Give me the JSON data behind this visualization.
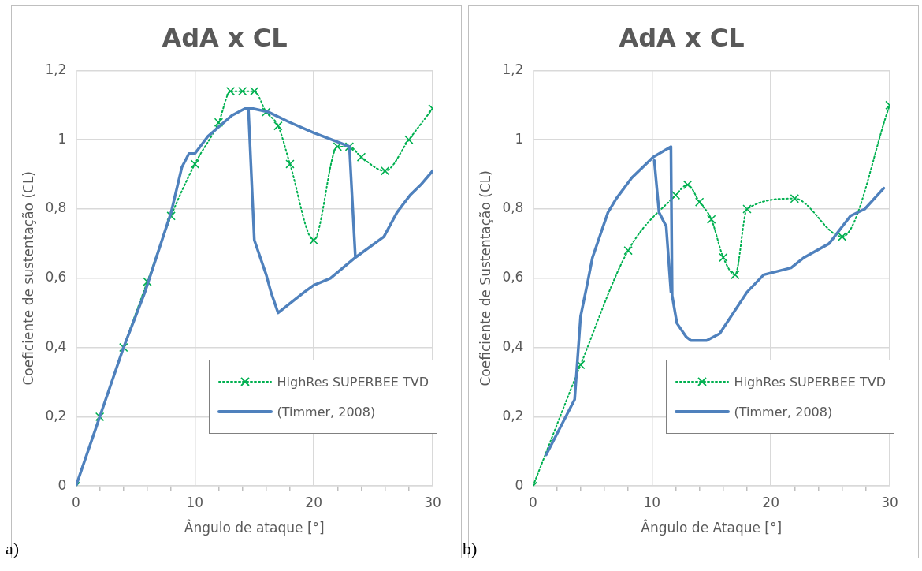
{
  "chart_data": [
    {
      "type": "line",
      "title": "AdA x CL",
      "xlabel": "Ângulo de ataque [°]",
      "ylabel": "Coeficiente de sustentação (CL)",
      "xlim": [
        0,
        30
      ],
      "xticks": [
        0,
        {
          "value": 2,
          "label": null
        },
        {
          "value": 4,
          "label": null
        },
        {
          "value": 6,
          "label": null
        },
        {
          "value": 8,
          "label": null
        },
        10,
        {
          "value": 12,
          "label": null
        },
        {
          "value": 14,
          "label": null
        },
        {
          "value": 16,
          "label": null
        },
        {
          "value": 18,
          "label": null
        },
        20,
        {
          "value": 22,
          "label": null
        },
        {
          "value": 24,
          "label": null
        },
        {
          "value": 26,
          "label": null
        },
        {
          "value": 28,
          "label": null
        },
        30
      ],
      "ylim": [
        0,
        1.2
      ],
      "yticks": [
        {
          "value": 0,
          "label": "0"
        },
        {
          "value": 0.2,
          "label": "0,2"
        },
        {
          "value": 0.4,
          "label": "0,4"
        },
        {
          "value": 0.6,
          "label": "0,6"
        },
        {
          "value": 0.8,
          "label": "0,8"
        },
        {
          "value": 1,
          "label": "1"
        },
        {
          "value": 1.2,
          "label": "1,2"
        }
      ],
      "grid": true,
      "legend": "bottom right",
      "annotations": [
        "a)"
      ],
      "series": [
        {
          "name": "HighRes SUPERBEE TVD",
          "color": "#00b050",
          "marker": "cross",
          "line_style": "dotted",
          "x": [
            0,
            2,
            4,
            6,
            8,
            10,
            12,
            13,
            14,
            15,
            16,
            17,
            18,
            20,
            22,
            23,
            24,
            26,
            28,
            30
          ],
          "values": [
            0,
            0.2,
            0.4,
            0.59,
            0.78,
            0.93,
            1.05,
            1.14,
            1.14,
            1.14,
            1.08,
            1.04,
            0.93,
            0.71,
            0.98,
            0.98,
            0.95,
            0.91,
            1.0,
            1.09
          ]
        },
        {
          "name": "(Timmer, 2008)",
          "color": "#4f81bd",
          "marker": "none",
          "line_style": "solid",
          "x": [
            0,
            2,
            4,
            5.8,
            8,
            8.9,
            9.5,
            10,
            11.1,
            13.1,
            14.2,
            14.5,
            15,
            16,
            16.4,
            17,
            19.2,
            20,
            21.4,
            23.5,
            25.9,
            27,
            28.1,
            29,
            30,
            null,
            14.5,
            14.9,
            16.2,
            18,
            20,
            22.3,
            23,
            23.5
          ],
          "values": [
            0,
            0.2,
            0.4,
            0.56,
            0.79,
            0.92,
            0.96,
            0.96,
            1.01,
            1.07,
            1.09,
            1.09,
            0.71,
            0.61,
            0.56,
            0.5,
            0.56,
            0.58,
            0.6,
            0.66,
            0.72,
            0.79,
            0.84,
            0.87,
            0.91,
            null,
            1.09,
            1.09,
            1.08,
            1.05,
            1.02,
            0.99,
            0.98,
            0.66
          ]
        }
      ]
    },
    {
      "type": "line",
      "title": "AdA x CL",
      "xlabel": "Ângulo de Ataque [°]",
      "ylabel": "Coeficiente de Sustentação (CL)",
      "xlim": [
        0,
        30
      ],
      "xticks": [
        0,
        {
          "value": 2,
          "label": null
        },
        {
          "value": 4,
          "label": null
        },
        {
          "value": 6,
          "label": null
        },
        {
          "value": 8,
          "label": null
        },
        10,
        {
          "value": 12,
          "label": null
        },
        {
          "value": 14,
          "label": null
        },
        {
          "value": 16,
          "label": null
        },
        {
          "value": 18,
          "label": null
        },
        20,
        {
          "value": 22,
          "label": null
        },
        {
          "value": 24,
          "label": null
        },
        {
          "value": 26,
          "label": null
        },
        {
          "value": 28,
          "label": null
        },
        30
      ],
      "ylim": [
        0,
        1.2
      ],
      "yticks": [
        {
          "value": 0,
          "label": "0"
        },
        {
          "value": 0.2,
          "label": "0,2"
        },
        {
          "value": 0.4,
          "label": "0,4"
        },
        {
          "value": 0.6,
          "label": "0,6"
        },
        {
          "value": 0.8,
          "label": "0,8"
        },
        {
          "value": 1,
          "label": "1"
        },
        {
          "value": 1.2,
          "label": "1,2"
        }
      ],
      "grid": true,
      "legend": "bottom right",
      "annotations": [
        "b)"
      ],
      "series": [
        {
          "name": "HighRes SUPERBEE TVD",
          "color": "#00b050",
          "marker": "cross",
          "line_style": "dotted",
          "x": [
            0,
            4,
            8,
            12,
            13,
            14,
            15,
            16,
            17,
            18,
            22,
            26,
            30
          ],
          "values": [
            0,
            0.35,
            0.68,
            0.84,
            0.87,
            0.82,
            0.77,
            0.66,
            0.61,
            0.8,
            0.83,
            0.72,
            1.1
          ]
        },
        {
          "name": "(Timmer, 2008)",
          "color": "#4f81bd",
          "marker": "none",
          "line_style": "solid",
          "x": [
            1.1,
            3.5,
            4,
            4.6,
            5,
            6.3,
            7,
            8.3,
            10.1,
            11.6,
            11.7,
            12.1,
            12.9,
            13.3,
            14.6,
            15.7,
            18,
            19.4,
            21.7,
            22.8,
            24.9,
            26.7,
            27.9,
            29.5,
            null,
            10.2,
            10.6,
            11.2,
            11.6
          ],
          "values": [
            0.09,
            0.25,
            0.49,
            0.59,
            0.66,
            0.79,
            0.83,
            0.89,
            0.95,
            0.98,
            0.55,
            0.47,
            0.43,
            0.42,
            0.42,
            0.44,
            0.56,
            0.61,
            0.63,
            0.66,
            0.7,
            0.78,
            0.8,
            0.86,
            null,
            0.94,
            0.79,
            0.75,
            0.56
          ]
        }
      ]
    }
  ]
}
